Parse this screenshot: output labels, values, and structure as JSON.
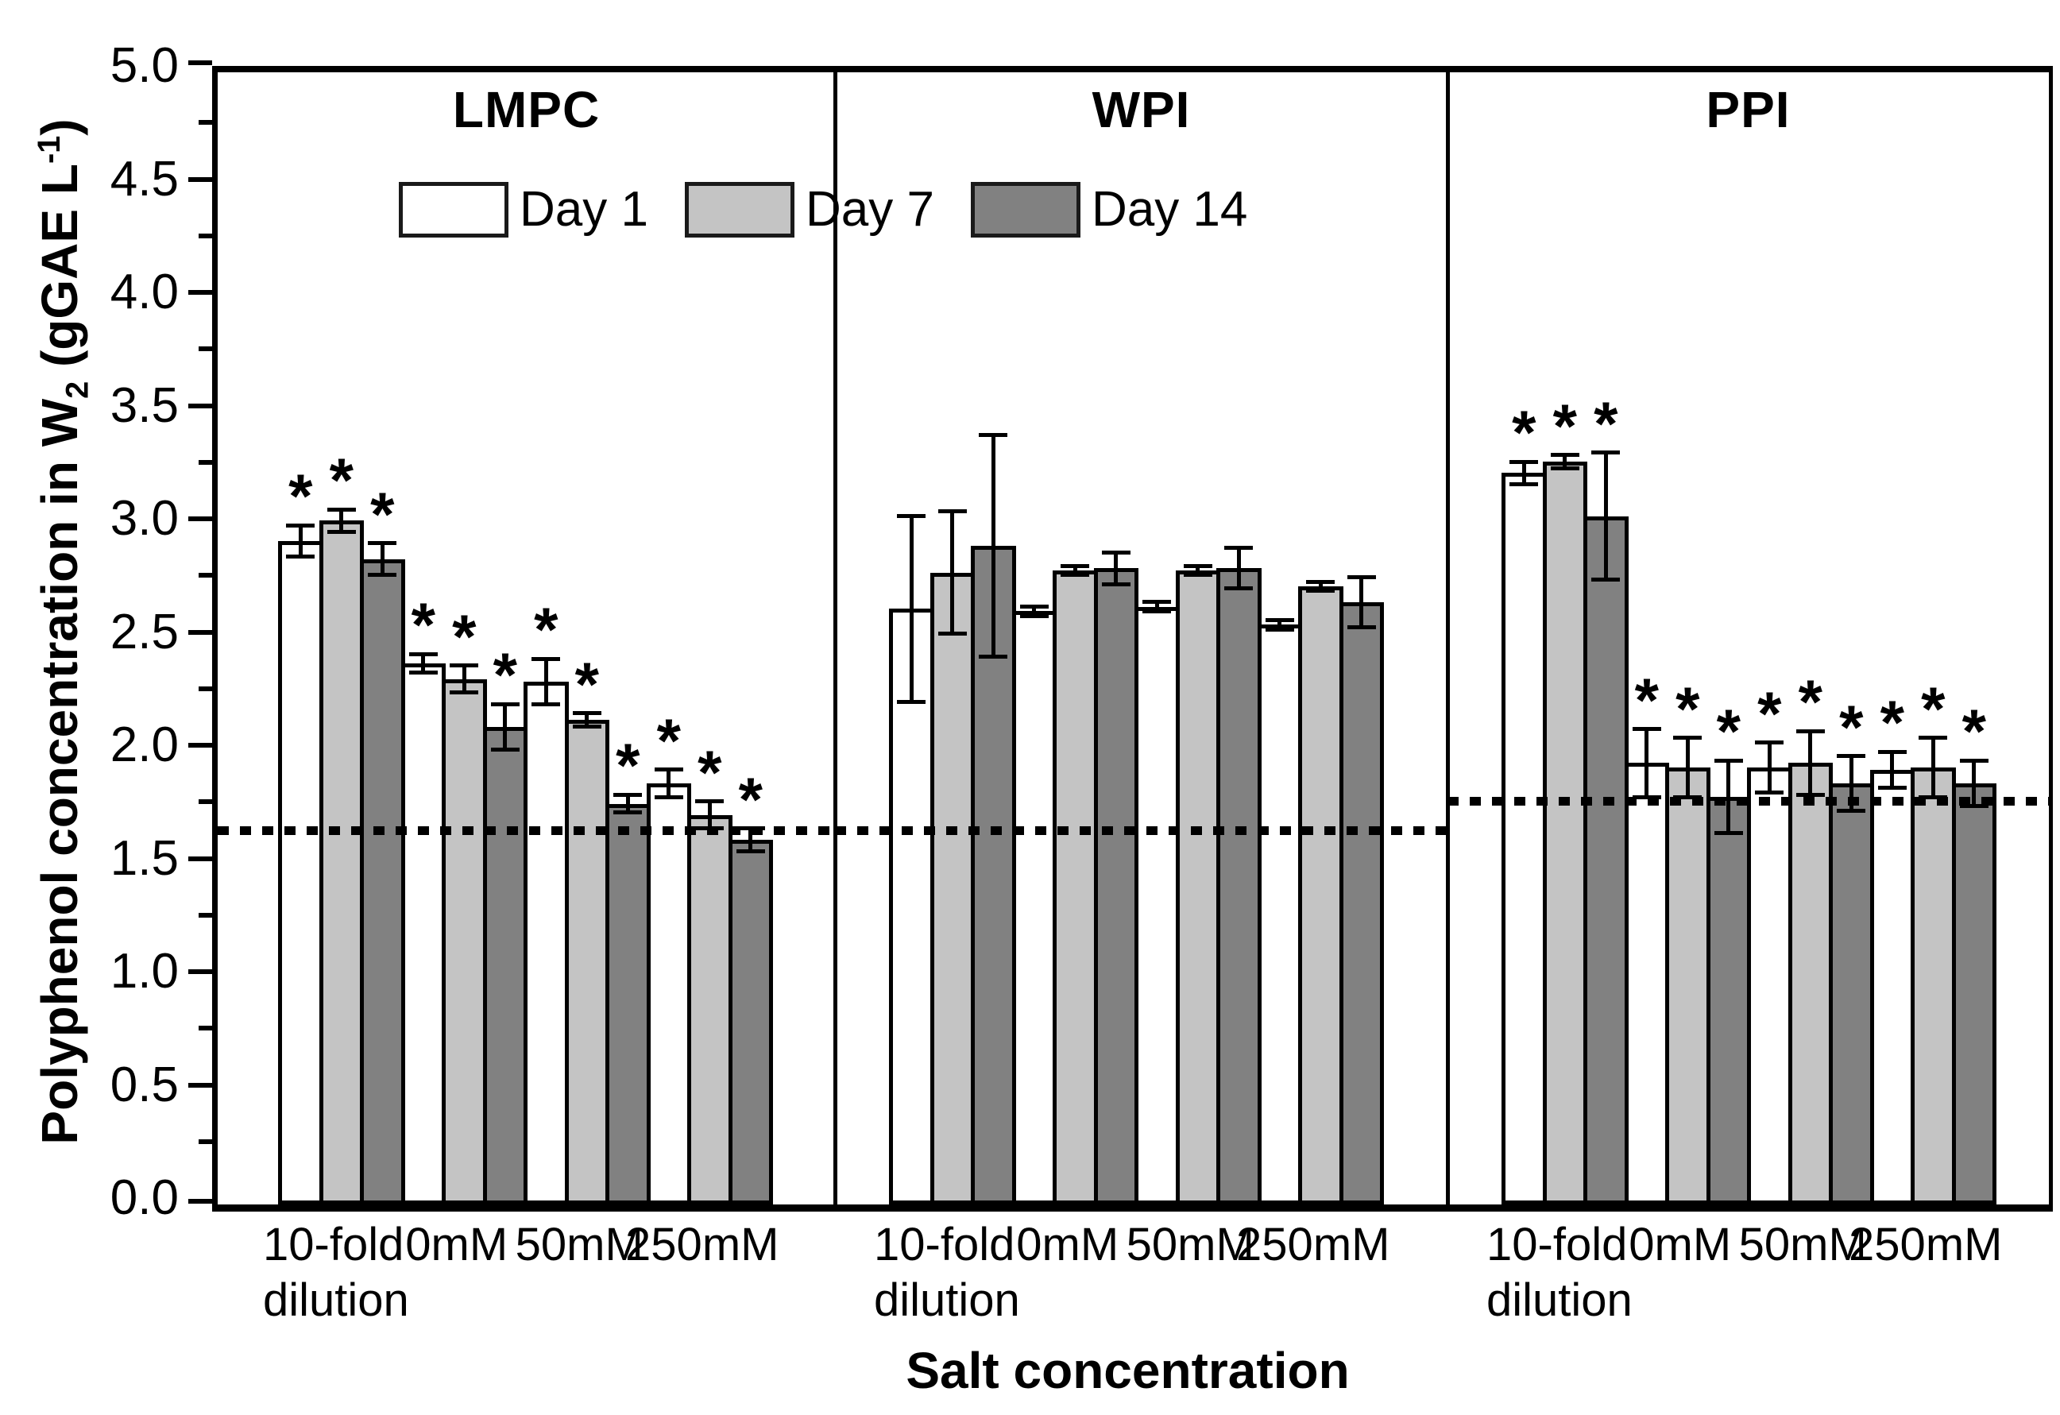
{
  "chart_data": {
    "type": "bar",
    "description": "Grouped bar chart with three panels (protein types), error bars, significance asterisks and dashed reference lines",
    "y_axis": {
      "label_parts": [
        "Polyphenol concentration in W",
        "2",
        " (gGAE L",
        "-1",
        ")"
      ],
      "min": 0.0,
      "max": 5.0,
      "major_tick_step": 0.5,
      "minor_tick_step": 0.25,
      "tick_labels": [
        "0.0",
        "0.5",
        "1.0",
        "1.5",
        "2.0",
        "2.5",
        "3.0",
        "3.5",
        "4.0",
        "4.5",
        "5.0"
      ]
    },
    "x_axis": {
      "title": "Salt concentration",
      "category_labels": [
        "10-fold",
        "0mM",
        "50mM",
        "250mM"
      ],
      "first_category_second_line": "dilution"
    },
    "series": [
      {
        "name": "Day 1",
        "color": "#ffffff"
      },
      {
        "name": "Day 7",
        "color": "#c4c4c4"
      },
      {
        "name": "Day 14",
        "color": "#818181"
      }
    ],
    "significance_marker": "*",
    "grid": false,
    "legend_position": "top-left inside plot, spanning first two panels",
    "panels": [
      {
        "name": "LMPC",
        "reference_line_value": 1.65,
        "asterisks_all_bars": true,
        "groups": [
          {
            "category": "10-fold dilution",
            "values": [
              2.93,
              3.02,
              2.85
            ],
            "errors": [
              0.07,
              0.05,
              0.07
            ]
          },
          {
            "category": "0mM",
            "values": [
              2.39,
              2.32,
              2.11
            ],
            "errors": [
              0.04,
              0.06,
              0.1
            ]
          },
          {
            "category": "50mM",
            "values": [
              2.31,
              2.14,
              1.77
            ],
            "errors": [
              0.1,
              0.03,
              0.04
            ]
          },
          {
            "category": "250mM",
            "values": [
              1.86,
              1.72,
              1.61
            ],
            "errors": [
              0.06,
              0.06,
              0.05
            ]
          }
        ]
      },
      {
        "name": "WPI",
        "reference_line_value": 1.65,
        "asterisks_all_bars": false,
        "groups": [
          {
            "category": "10-fold dilution",
            "values": [
              2.63,
              2.79,
              2.91
            ],
            "errors": [
              0.41,
              0.27,
              0.49
            ]
          },
          {
            "category": "0mM",
            "values": [
              2.62,
              2.8,
              2.81
            ],
            "errors": [
              0.02,
              0.02,
              0.07
            ]
          },
          {
            "category": "50mM",
            "values": [
              2.64,
              2.8,
              2.81
            ],
            "errors": [
              0.02,
              0.02,
              0.09
            ]
          },
          {
            "category": "250mM",
            "values": [
              2.56,
              2.73,
              2.66
            ],
            "errors": [
              0.02,
              0.02,
              0.11
            ]
          }
        ]
      },
      {
        "name": "PPI",
        "reference_line_value": 1.78,
        "asterisks_all_bars": true,
        "groups": [
          {
            "category": "10-fold dilution",
            "values": [
              3.23,
              3.28,
              3.04
            ],
            "errors": [
              0.05,
              0.03,
              0.28
            ]
          },
          {
            "category": "0mM",
            "values": [
              1.95,
              1.93,
              1.8
            ],
            "errors": [
              0.15,
              0.13,
              0.16
            ]
          },
          {
            "category": "50mM",
            "values": [
              1.93,
              1.95,
              1.86
            ],
            "errors": [
              0.11,
              0.14,
              0.12
            ]
          },
          {
            "category": "250mM",
            "values": [
              1.92,
              1.93,
              1.86
            ],
            "errors": [
              0.08,
              0.13,
              0.1
            ]
          }
        ]
      }
    ]
  }
}
